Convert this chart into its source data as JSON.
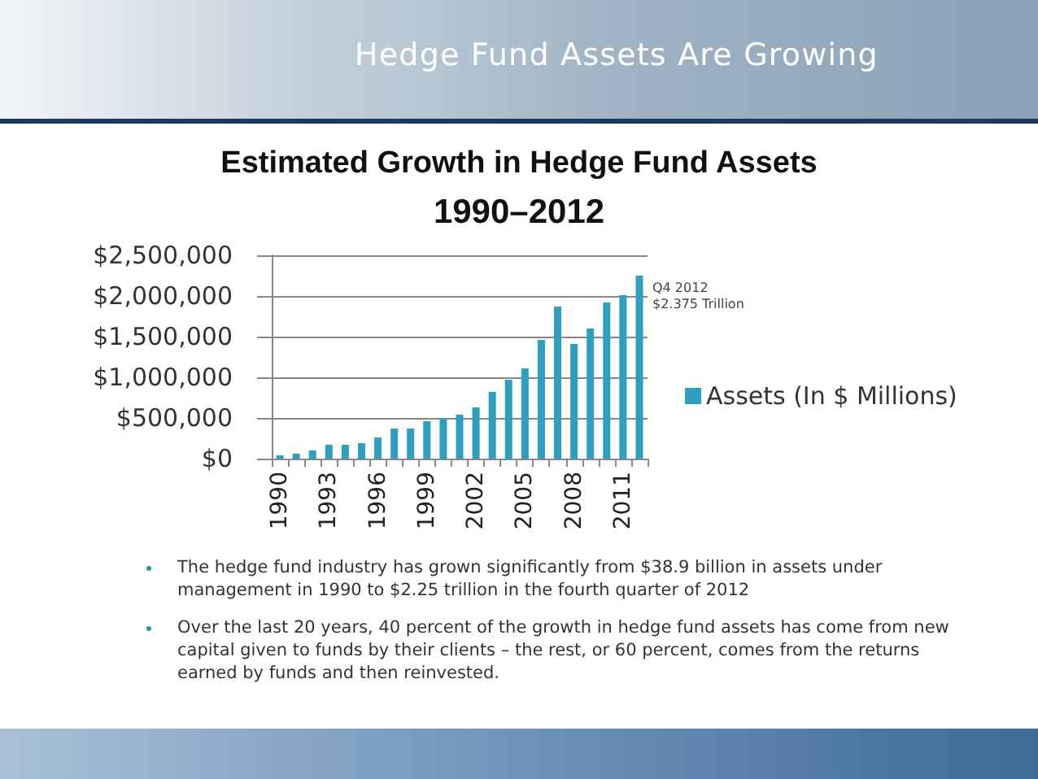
{
  "chart_data": {
    "type": "bar",
    "title": "Estimated Growth in Hedge Fund Assets",
    "subtitle": "1990–2012",
    "annotations": [
      "Hedge Fund Assets Are Growing",
      "Q4 2012\n$2.375 Trillion",
      "The hedge fund industry has grown significantly from $38.9 billion in assets under management in 1990 to $2.25 trillion in the fourth quarter of 2012",
      "Over the last 20 years, 40 percent of the growth in hedge fund assets has come from new capital given to funds by their clients – the rest, or 60 percent, comes from the returns earned by funds and then reinvested."
    ],
    "categories": [
      "1990",
      null,
      null,
      "1993",
      null,
      null,
      "1996",
      null,
      null,
      "1999",
      null,
      null,
      "2002",
      null,
      null,
      "2005",
      null,
      null,
      "2008",
      null,
      null,
      "2011",
      null
    ],
    "series": [
      {
        "name": "Assets (In $ Millions)",
        "color": "#2f9fc0",
        "values": [
          40000,
          60000,
          100000,
          170000,
          170000,
          190000,
          260000,
          370000,
          370000,
          460000,
          490000,
          540000,
          630000,
          820000,
          970000,
          1110000,
          1460000,
          1870000,
          1410000,
          1600000,
          1920000,
          2010000,
          2250000
        ]
      }
    ],
    "ylim": [
      0,
      2500000
    ],
    "yticks": [
      {
        "value": 0,
        "label": "$0"
      },
      {
        "value": 500000,
        "label": "$500,000"
      },
      {
        "value": 1000000,
        "label": "$1,000,000"
      },
      {
        "value": 1500000,
        "label": "$1,500,000"
      },
      {
        "value": 2000000,
        "label": "$2,000,000"
      },
      {
        "value": 2500000,
        "label": "$2,500,000"
      }
    ],
    "grid": "y",
    "legend": "right"
  }
}
